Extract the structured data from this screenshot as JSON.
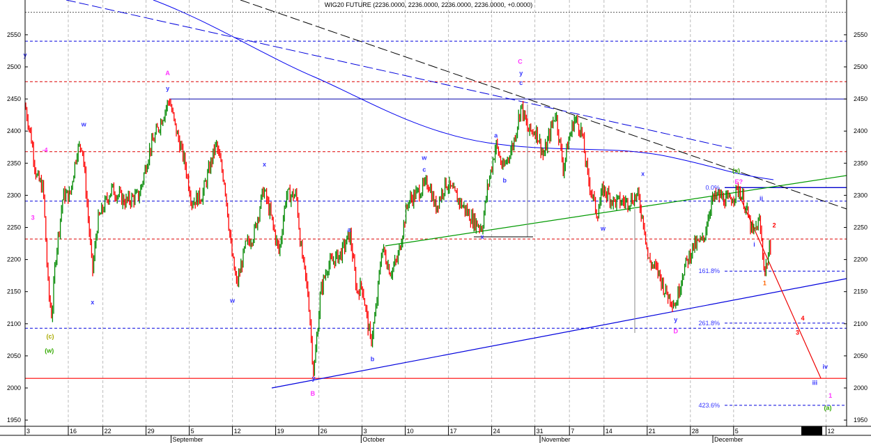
{
  "chart_data": {
    "type": "bar",
    "title": "WIG20 FUTURE (2236.0000, 2236.0000, 2236.0000, 2236.0000, +0.0000)",
    "ylim": [
      1930,
      2590
    ],
    "y_ticks": [
      1950,
      2000,
      2050,
      2100,
      2150,
      2200,
      2250,
      2300,
      2350,
      2400,
      2450,
      2500,
      2550
    ],
    "x_ticks": [
      {
        "label": "3",
        "day": 0
      },
      {
        "label": "16",
        "day": 5
      },
      {
        "label": "22",
        "day": 9
      },
      {
        "label": "29",
        "day": 14
      },
      {
        "label": "5",
        "day": 19
      },
      {
        "label": "12",
        "day": 24
      },
      {
        "label": "19",
        "day": 29
      },
      {
        "label": "26",
        "day": 34
      },
      {
        "label": "3",
        "day": 39
      },
      {
        "label": "10",
        "day": 44
      },
      {
        "label": "17",
        "day": 49
      },
      {
        "label": "24",
        "day": 54
      },
      {
        "label": "31",
        "day": 59
      },
      {
        "label": "7",
        "day": 63
      },
      {
        "label": "14",
        "day": 67
      },
      {
        "label": "21",
        "day": 72
      },
      {
        "label": "28",
        "day": 77
      },
      {
        "label": "5",
        "day": 82
      },
      {
        "label": "12",
        "day": 92.7
      }
    ],
    "months": [
      {
        "label": "September",
        "day": 16.9
      },
      {
        "label": "October",
        "day": 38.9
      },
      {
        "label": "November",
        "day": 59.6
      },
      {
        "label": "December",
        "day": 79.6
      }
    ],
    "price_path": [
      [
        0,
        2440
      ],
      [
        0.7,
        2390
      ],
      [
        1.3,
        2330
      ],
      [
        2.1,
        2310
      ],
      [
        2.7,
        2150
      ],
      [
        3.1,
        2110
      ],
      [
        3.5,
        2200
      ],
      [
        4.4,
        2300
      ],
      [
        5.2,
        2300
      ],
      [
        6,
        2370
      ],
      [
        6.6,
        2380
      ],
      [
        7.1,
        2300
      ],
      [
        7.8,
        2180
      ],
      [
        8.4,
        2260
      ],
      [
        10,
        2310
      ],
      [
        11.6,
        2290
      ],
      [
        13.2,
        2300
      ],
      [
        14.4,
        2370
      ],
      [
        16.7,
        2450
      ],
      [
        17.3,
        2410
      ],
      [
        18.5,
        2350
      ],
      [
        19.3,
        2290
      ],
      [
        20.5,
        2300
      ],
      [
        21.3,
        2340
      ],
      [
        22.1,
        2380
      ],
      [
        23.1,
        2320
      ],
      [
        23.9,
        2210
      ],
      [
        24.5,
        2160
      ],
      [
        25.5,
        2220
      ],
      [
        26.5,
        2240
      ],
      [
        27.6,
        2310
      ],
      [
        28.4,
        2270
      ],
      [
        29.4,
        2210
      ],
      [
        30.2,
        2300
      ],
      [
        31.4,
        2300
      ],
      [
        31.9,
        2220
      ],
      [
        32.8,
        2140
      ],
      [
        33.4,
        2020
      ],
      [
        34.2,
        2150
      ],
      [
        35,
        2190
      ],
      [
        36.6,
        2210
      ],
      [
        37.6,
        2240
      ],
      [
        38.4,
        2150
      ],
      [
        39,
        2160
      ],
      [
        40,
        2070
      ],
      [
        40.6,
        2120
      ],
      [
        41.3,
        2220
      ],
      [
        42.3,
        2180
      ],
      [
        43.1,
        2200
      ],
      [
        44.3,
        2290
      ],
      [
        45.9,
        2310
      ],
      [
        46.7,
        2320
      ],
      [
        47.5,
        2280
      ],
      [
        48.7,
        2320
      ],
      [
        50.3,
        2290
      ],
      [
        51.9,
        2260
      ],
      [
        52.9,
        2250
      ],
      [
        53.5,
        2310
      ],
      [
        54.5,
        2380
      ],
      [
        55.3,
        2340
      ],
      [
        56.5,
        2380
      ],
      [
        57.4,
        2440
      ],
      [
        58.2,
        2400
      ],
      [
        59.2,
        2400
      ],
      [
        60,
        2360
      ],
      [
        60.8,
        2400
      ],
      [
        61.4,
        2430
      ],
      [
        62.3,
        2340
      ],
      [
        62.8,
        2380
      ],
      [
        63.6,
        2420
      ],
      [
        64.4,
        2400
      ],
      [
        65.1,
        2330
      ],
      [
        66.2,
        2270
      ],
      [
        66.9,
        2310
      ],
      [
        68.1,
        2290
      ],
      [
        69.7,
        2290
      ],
      [
        70.9,
        2300
      ],
      [
        71.7,
        2250
      ],
      [
        72.1,
        2200
      ],
      [
        73.3,
        2180
      ],
      [
        74.1,
        2150
      ],
      [
        75.3,
        2130
      ],
      [
        76.1,
        2180
      ],
      [
        77.3,
        2220
      ],
      [
        78.5,
        2230
      ],
      [
        79.4,
        2290
      ],
      [
        80.2,
        2300
      ],
      [
        81.4,
        2290
      ],
      [
        82.6,
        2310
      ],
      [
        83.2,
        2290
      ],
      [
        84.2,
        2240
      ],
      [
        85,
        2260
      ],
      [
        85.6,
        2180
      ],
      [
        86.4,
        2230
      ]
    ],
    "horizontal_levels": [
      {
        "value": 2585,
        "style": "dotted",
        "color": "#555555"
      },
      {
        "value": 2540,
        "style": "dashed",
        "color": "#0000dd"
      },
      {
        "value": 2477,
        "style": "dashed",
        "color": "#dd0000"
      },
      {
        "value": 2368,
        "style": "dashed",
        "color": "#dd0000"
      },
      {
        "value": 2291,
        "style": "dashed",
        "color": "#0000dd"
      },
      {
        "value": 2232,
        "style": "dashed",
        "color": "#dd0000"
      },
      {
        "value": 2093,
        "style": "dashed",
        "color": "#0000dd"
      },
      {
        "value": 2015,
        "style": "solid",
        "color": "#ff0000"
      }
    ],
    "fib_levels": [
      {
        "label": "0.0%",
        "value": 2312
      },
      {
        "label": "161.8%",
        "value": 2182
      },
      {
        "label": "261.8%",
        "value": 2101
      },
      {
        "label": "423.6%",
        "value": 1973
      }
    ],
    "annotations": [
      {
        "t": "y",
        "day": 0,
        "v": 2515,
        "c": "#3333ff"
      },
      {
        "t": "3",
        "day": 0.9,
        "v": 2262,
        "c": "#ff33ff"
      },
      {
        "t": "-4",
        "day": 2.3,
        "v": 2367,
        "c": "#ff33ff"
      },
      {
        "t": "(c)",
        "day": 2.9,
        "v": 2077,
        "c": "#aaaa00"
      },
      {
        "t": "(w)",
        "day": 2.8,
        "v": 2055,
        "c": "#33aa00"
      },
      {
        "t": "w",
        "day": 6.8,
        "v": 2407,
        "c": "#3333ff"
      },
      {
        "t": "x",
        "day": 7.8,
        "v": 2130,
        "c": "#3333ff"
      },
      {
        "t": "A",
        "day": 16.5,
        "v": 2487,
        "c": "#ff33ff"
      },
      {
        "t": "y",
        "day": 16.5,
        "v": 2463,
        "c": "#3333ff"
      },
      {
        "t": "w",
        "day": 24,
        "v": 2133,
        "c": "#3333ff"
      },
      {
        "t": "x",
        "day": 27.7,
        "v": 2345,
        "c": "#3333ff"
      },
      {
        "t": "y",
        "day": 33.4,
        "v": 2012,
        "c": "#3333ff"
      },
      {
        "t": "B",
        "day": 33.3,
        "v": 1988,
        "c": "#ff33ff"
      },
      {
        "t": "a",
        "day": 37.5,
        "v": 2243,
        "c": "#3333ff"
      },
      {
        "t": "b",
        "day": 40.2,
        "v": 2042,
        "c": "#3333ff"
      },
      {
        "t": "w",
        "day": 46.2,
        "v": 2355,
        "c": "#3333ff"
      },
      {
        "t": "c",
        "day": 46.2,
        "v": 2337,
        "c": "#3333ff"
      },
      {
        "t": "x",
        "day": 52.9,
        "v": 2232,
        "c": "#3333ff"
      },
      {
        "t": "a",
        "day": 54.5,
        "v": 2390,
        "c": "#3333ff"
      },
      {
        "t": "b",
        "day": 55.5,
        "v": 2320,
        "c": "#3333ff"
      },
      {
        "t": "C",
        "day": 57.3,
        "v": 2505,
        "c": "#ff33ff"
      },
      {
        "t": "y",
        "day": 57.4,
        "v": 2487,
        "c": "#3333ff"
      },
      {
        "t": "c",
        "day": 57.4,
        "v": 2472,
        "c": "#3333ff"
      },
      {
        "t": "w",
        "day": 66.9,
        "v": 2245,
        "c": "#3333ff"
      },
      {
        "t": "x",
        "day": 71.5,
        "v": 2330,
        "c": "#3333ff"
      },
      {
        "t": "y",
        "day": 75.3,
        "v": 2103,
        "c": "#3333ff"
      },
      {
        "t": "D",
        "day": 75.3,
        "v": 2085,
        "c": "#ff33ff"
      },
      {
        "t": "(x)",
        "day": 82.3,
        "v": 2335,
        "c": "#33aa00"
      },
      {
        "t": "E?",
        "day": 82.6,
        "v": 2318,
        "c": "#ff33ff"
      },
      {
        "t": "ii",
        "day": 85.2,
        "v": 2292,
        "c": "#3333ff"
      },
      {
        "t": "i",
        "day": 84.4,
        "v": 2220,
        "c": "#3333ff"
      },
      {
        "t": "2",
        "day": 86.7,
        "v": 2250,
        "c": "#ff0000"
      },
      {
        "t": "1",
        "day": 85.6,
        "v": 2160,
        "c": "#ff6600"
      },
      {
        "t": "4",
        "day": 90,
        "v": 2105,
        "c": "#ff0000"
      },
      {
        "t": "3",
        "day": 89.4,
        "v": 2083,
        "c": "#ff0000"
      },
      {
        "t": "iv",
        "day": 92.6,
        "v": 2030,
        "c": "#3333ff"
      },
      {
        "t": "iii",
        "day": 91.4,
        "v": 2005,
        "c": "#3333ff"
      },
      {
        "t": "1",
        "day": 93.2,
        "v": 1985,
        "c": "#ff33ff"
      },
      {
        "t": "(a)",
        "day": 92.9,
        "v": 1966,
        "c": "#33aa00"
      }
    ]
  }
}
